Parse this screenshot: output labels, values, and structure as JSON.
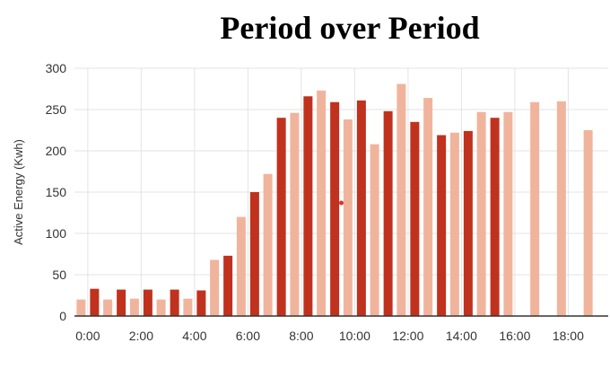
{
  "chart_data": {
    "type": "bar",
    "title": "Period over Period",
    "xlabel": "",
    "ylabel": "Active Energy (Kwh)",
    "ylim": [
      0,
      300
    ],
    "yticks": [
      0,
      50,
      100,
      150,
      200,
      250,
      300
    ],
    "grid": true,
    "categories": [
      "0:00",
      "1:00",
      "2:00",
      "3:00",
      "4:00",
      "5:00",
      "6:00",
      "7:00",
      "8:00",
      "9:00",
      "10:00",
      "11:00",
      "12:00",
      "13:00",
      "14:00",
      "15:00",
      "16:00",
      "17:00",
      "18:00",
      "19:00"
    ],
    "xtick_labels": [
      "0:00",
      "2:00",
      "4:00",
      "6:00",
      "8:00",
      "10:00",
      "12:00",
      "14:00",
      "16:00",
      "18:00"
    ],
    "series": [
      {
        "color": "#f0b49d",
        "values": [
          20,
          20,
          21,
          20,
          21,
          68,
          120,
          172,
          246,
          273,
          238,
          208,
          281,
          264,
          222,
          247,
          247,
          259,
          260,
          225
        ]
      },
      {
        "color": "#c0321e",
        "values": [
          33,
          32,
          32,
          32,
          31,
          73,
          150,
          240,
          266,
          259,
          261,
          248,
          235,
          219,
          224,
          240,
          null,
          null,
          null,
          null
        ]
      }
    ],
    "annotations": [
      {
        "type": "dot",
        "x": "9:30",
        "y": 137,
        "color": "#e03030"
      }
    ]
  }
}
